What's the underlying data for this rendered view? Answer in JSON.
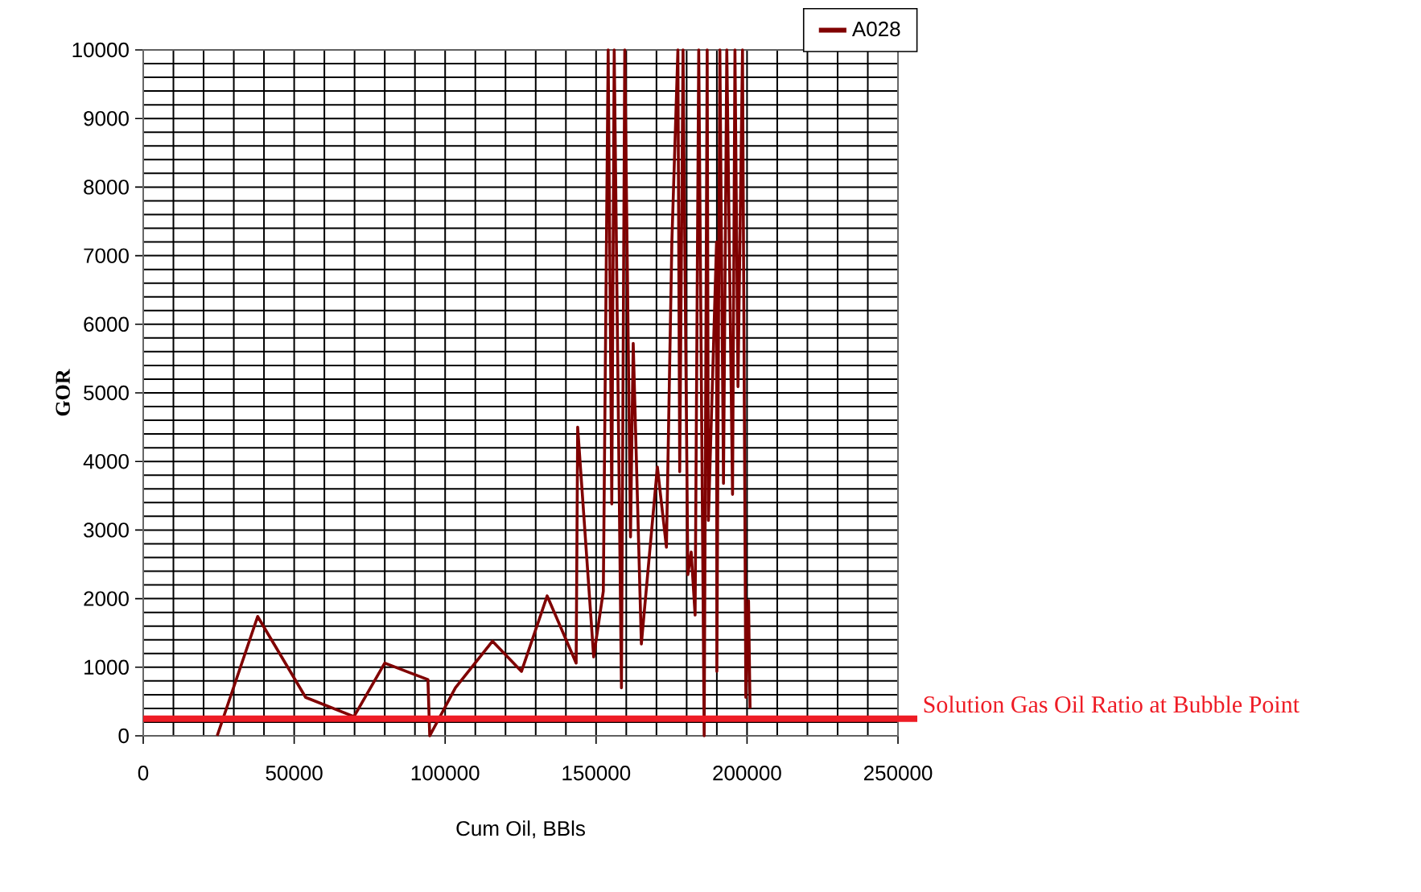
{
  "chart_data": {
    "type": "line",
    "xlabel": "Cum Oil, BBls",
    "ylabel": "GOR",
    "xlim": [
      0,
      250000
    ],
    "ylim": [
      0,
      10000
    ],
    "xticks": [
      0,
      50000,
      100000,
      150000,
      200000,
      250000
    ],
    "yticks": [
      0,
      1000,
      2000,
      3000,
      4000,
      5000,
      6000,
      7000,
      8000,
      9000,
      10000
    ],
    "grid": true,
    "legend": "top right",
    "line_style": "solid",
    "marker": "none",
    "series": [
      {
        "name": "A028",
        "color": "#800000",
        "x": [
          24500,
          37900,
          53800,
          69800,
          80000,
          94300,
          94900,
          103400,
          115700,
          125300,
          133800,
          143400,
          143900,
          149200,
          152400,
          154000,
          155200,
          156000,
          158400,
          159500,
          161400,
          162300,
          165000,
          170300,
          173300,
          175100,
          177100,
          177700,
          178800,
          180400,
          181500,
          182800,
          184000,
          185800,
          186800,
          187200,
          189900,
          190000,
          191000,
          192200,
          193300,
          195200,
          196000,
          197000,
          198500,
          199600,
          200500,
          201000
        ],
        "values": [
          0,
          1740,
          560,
          280,
          1060,
          820,
          0,
          700,
          1380,
          940,
          2040,
          1060,
          4500,
          1150,
          2110,
          10000,
          3380,
          10000,
          700,
          10000,
          2900,
          5720,
          1340,
          3920,
          2750,
          7200,
          10000,
          3850,
          10000,
          2350,
          2680,
          1760,
          10000,
          0,
          10000,
          3140,
          7200,
          940,
          10000,
          3680,
          10000,
          3520,
          10000,
          5090,
          10000,
          560,
          1970,
          400
        ]
      }
    ],
    "ref_lines": [
      {
        "axis": "y",
        "value": 250,
        "label": "Solution Gas Oil Ratio at Bubble Point",
        "color": "#ee1c25"
      }
    ]
  }
}
